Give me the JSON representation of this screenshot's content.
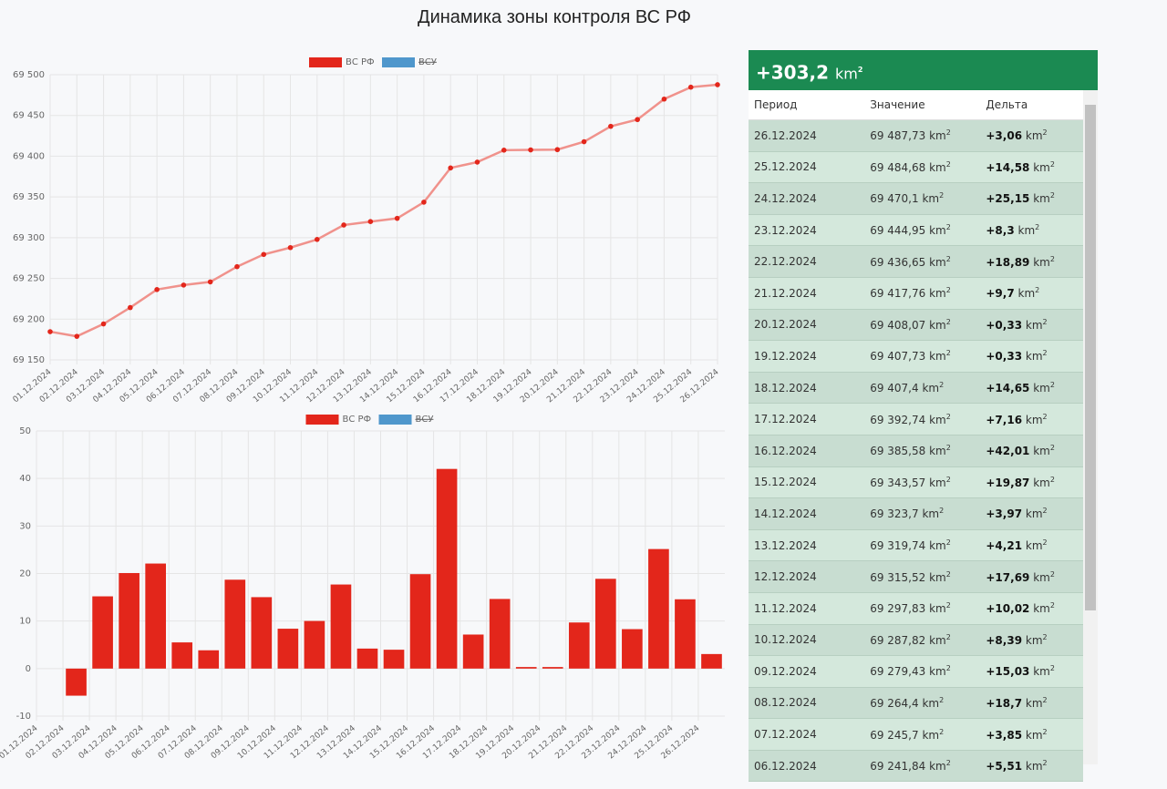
{
  "page_title": "Динамика зоны контроля ВС РФ",
  "chart_data": [
    {
      "type": "line",
      "categories": [
        "01.12.2024",
        "02.12.2024",
        "03.12.2024",
        "04.12.2024",
        "05.12.2024",
        "06.12.2024",
        "07.12.2024",
        "08.12.2024",
        "09.12.2024",
        "10.12.2024",
        "11.12.2024",
        "12.12.2024",
        "13.12.2024",
        "14.12.2024",
        "15.12.2024",
        "16.12.2024",
        "17.12.2024",
        "18.12.2024",
        "19.12.2024",
        "20.12.2024",
        "21.12.2024",
        "22.12.2024",
        "23.12.2024",
        "24.12.2024",
        "25.12.2024",
        "26.12.2024"
      ],
      "series": [
        {
          "name": "ВС РФ",
          "color": "#e3261b",
          "line_color": "#f0928c",
          "values": [
            69184.6,
            69178.9,
            69194.1,
            69214.2,
            69236.33,
            69241.84,
            69245.7,
            69264.4,
            69279.43,
            69287.82,
            69297.83,
            69315.52,
            69319.74,
            69323.7,
            69343.57,
            69385.58,
            69392.74,
            69407.4,
            69407.73,
            69408.07,
            69417.76,
            69436.65,
            69444.95,
            69470.1,
            69484.68,
            69487.73
          ]
        }
      ],
      "legend": [
        {
          "name": "ВС РФ",
          "color": "#e3261b",
          "hidden": false
        },
        {
          "name": "ВСУ",
          "color": "#4f97cc",
          "hidden": true
        }
      ],
      "ylim": [
        69150,
        69500
      ],
      "yticks": [
        {
          "value": 69150,
          "label": "69 150"
        },
        {
          "value": 69200,
          "label": "69 200"
        },
        {
          "value": 69250,
          "label": "69 250"
        },
        {
          "value": 69300,
          "label": "69 300"
        },
        {
          "value": 69350,
          "label": "69 350"
        },
        {
          "value": 69400,
          "label": "69 400"
        },
        {
          "value": 69450,
          "label": "69 450"
        },
        {
          "value": 69500,
          "label": "69 500"
        }
      ],
      "grid": true
    },
    {
      "type": "bar",
      "categories": [
        "01.12.2024",
        "02.12.2024",
        "03.12.2024",
        "04.12.2024",
        "05.12.2024",
        "06.12.2024",
        "07.12.2024",
        "08.12.2024",
        "09.12.2024",
        "10.12.2024",
        "11.12.2024",
        "12.12.2024",
        "13.12.2024",
        "14.12.2024",
        "15.12.2024",
        "16.12.2024",
        "17.12.2024",
        "18.12.2024",
        "19.12.2024",
        "20.12.2024",
        "21.12.2024",
        "22.12.2024",
        "23.12.2024",
        "24.12.2024",
        "25.12.2024",
        "26.12.2024"
      ],
      "series": [
        {
          "name": "ВС РФ",
          "color": "#e3261b",
          "values": [
            null,
            -5.7,
            15.2,
            20.1,
            22.1,
            5.51,
            3.85,
            18.7,
            15.03,
            8.39,
            10.02,
            17.69,
            4.21,
            3.97,
            19.87,
            42.01,
            7.16,
            14.65,
            0.33,
            0.33,
            9.7,
            18.89,
            8.3,
            25.15,
            14.58,
            3.06
          ]
        }
      ],
      "legend": [
        {
          "name": "ВС РФ",
          "color": "#e3261b",
          "hidden": false
        },
        {
          "name": "ВСУ",
          "color": "#4f97cc",
          "hidden": true
        }
      ],
      "ylim": [
        -10,
        50
      ],
      "yticks": [
        -10,
        0,
        10,
        20,
        30,
        40,
        50
      ],
      "grid": true
    }
  ],
  "table": {
    "total": "+303,2",
    "unit": "km",
    "unit_power": "2",
    "columns": [
      "Период",
      "Значение",
      "Дельта"
    ],
    "rows": [
      [
        "26.12.2024",
        "69 487,73",
        "+3,06"
      ],
      [
        "25.12.2024",
        "69 484,68",
        "+14,58"
      ],
      [
        "24.12.2024",
        "69 470,1",
        "+25,15"
      ],
      [
        "23.12.2024",
        "69 444,95",
        "+8,3"
      ],
      [
        "22.12.2024",
        "69 436,65",
        "+18,89"
      ],
      [
        "21.12.2024",
        "69 417,76",
        "+9,7"
      ],
      [
        "20.12.2024",
        "69 408,07",
        "+0,33"
      ],
      [
        "19.12.2024",
        "69 407,73",
        "+0,33"
      ],
      [
        "18.12.2024",
        "69 407,4",
        "+14,65"
      ],
      [
        "17.12.2024",
        "69 392,74",
        "+7,16"
      ],
      [
        "16.12.2024",
        "69 385,58",
        "+42,01"
      ],
      [
        "15.12.2024",
        "69 343,57",
        "+19,87"
      ],
      [
        "14.12.2024",
        "69 323,7",
        "+3,97"
      ],
      [
        "13.12.2024",
        "69 319,74",
        "+4,21"
      ],
      [
        "12.12.2024",
        "69 315,52",
        "+17,69"
      ],
      [
        "11.12.2024",
        "69 297,83",
        "+10,02"
      ],
      [
        "10.12.2024",
        "69 287,82",
        "+8,39"
      ],
      [
        "09.12.2024",
        "69 279,43",
        "+15,03"
      ],
      [
        "08.12.2024",
        "69 264,4",
        "+18,7"
      ],
      [
        "07.12.2024",
        "69 245,7",
        "+3,85"
      ],
      [
        "06.12.2024",
        "69 241,84",
        "+5,51"
      ]
    ]
  }
}
